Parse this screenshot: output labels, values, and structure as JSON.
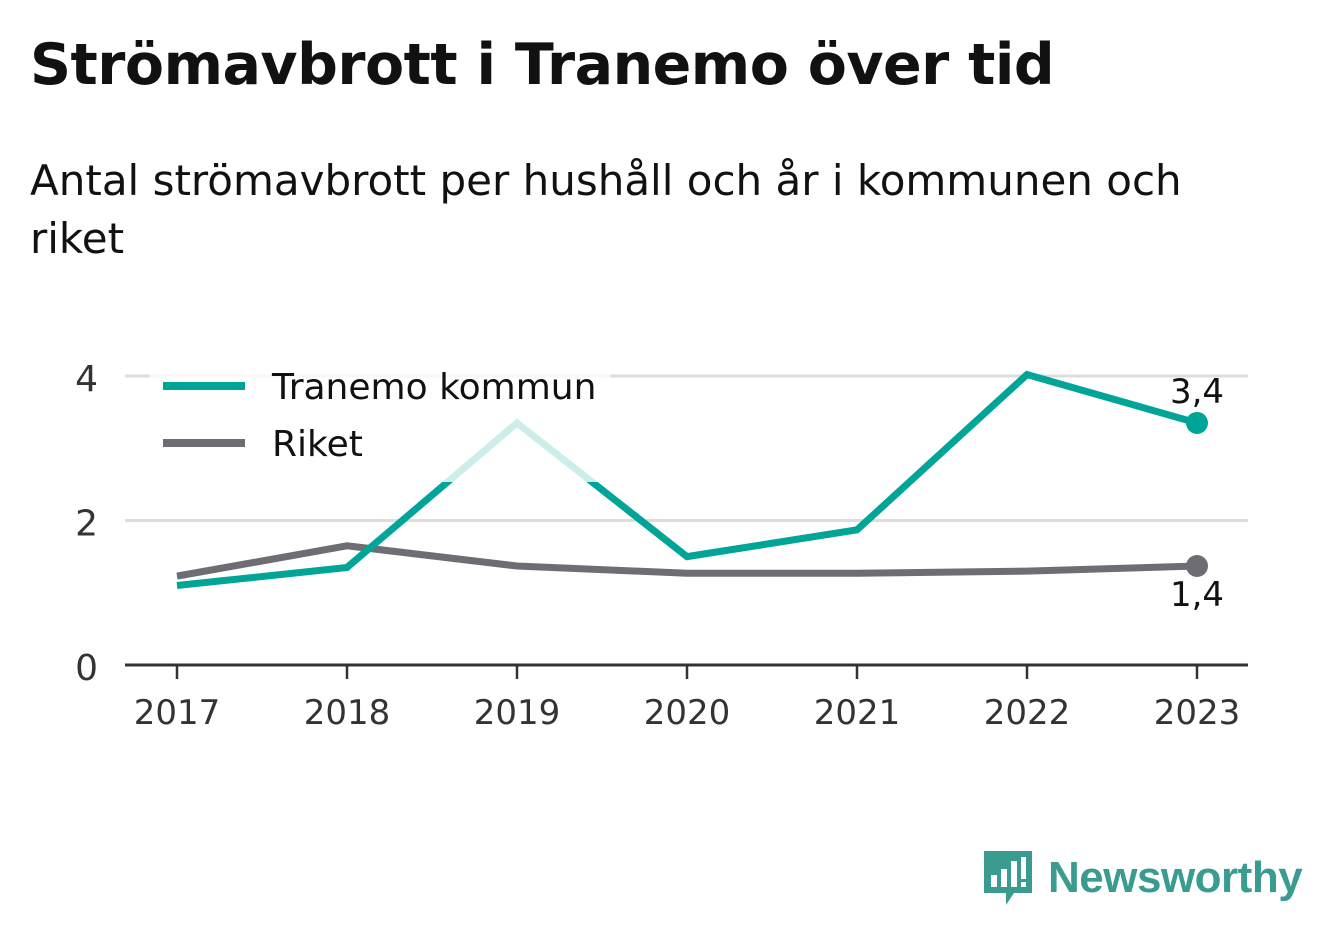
{
  "title": "Strömavbrott i Tranemo över tid",
  "subtitle": "Antal strömavbrott per hushåll och år i kommunen och riket",
  "brand": {
    "name": "Newsworthy",
    "icon": "newsworthy-logo-icon"
  },
  "colors": {
    "tranemo": "#00a597",
    "tranemo_faded": "#c9ebe7",
    "riket": "#6e6d73",
    "grid": "#dddddd",
    "axis": "#333333"
  },
  "chart_data": {
    "type": "line",
    "x": [
      "2017",
      "2018",
      "2019",
      "2020",
      "2021",
      "2022",
      "2023"
    ],
    "yticks": [
      "0",
      "2",
      "4"
    ],
    "ylim": [
      0,
      4
    ],
    "grid": true,
    "legend_position": "top-left",
    "series": [
      {
        "name": "Tranemo kommun",
        "values": [
          1.1,
          1.35,
          3.35,
          1.5,
          1.87,
          4.02,
          3.35
        ],
        "end_label": "3,4",
        "color": "#00a597"
      },
      {
        "name": "Riket",
        "values": [
          1.23,
          1.65,
          1.37,
          1.27,
          1.27,
          1.3,
          1.37
        ],
        "end_label": "1,4",
        "color": "#6e6d73"
      }
    ]
  }
}
